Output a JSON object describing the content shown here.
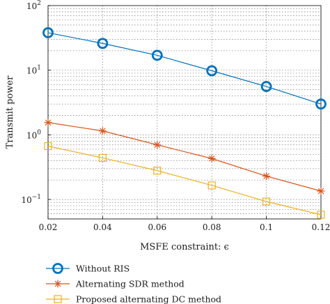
{
  "chart_data": {
    "type": "line",
    "title": "",
    "xlabel": "MSFE constraint: ϵ",
    "ylabel": "Transmit power",
    "yscale": "log",
    "xlim": [
      0.02,
      0.12
    ],
    "ylim": [
      0.05,
      100
    ],
    "grid": true,
    "legend_position": "bottom",
    "x": [
      0.02,
      0.04,
      0.06,
      0.08,
      0.1,
      0.12
    ],
    "x_tick_labels": [
      "0.02",
      "0.04",
      "0.06",
      "0.08",
      "0.1",
      "0.12"
    ],
    "y_ticks": [
      {
        "value": 0.1,
        "base": "10",
        "exp": "−1"
      },
      {
        "value": 1,
        "base": "10",
        "exp": "0"
      },
      {
        "value": 10,
        "base": "10",
        "exp": "1"
      },
      {
        "value": 100,
        "base": "10",
        "exp": "2"
      }
    ],
    "series": [
      {
        "name": "Without RIS",
        "values": [
          38,
          26,
          17,
          9.8,
          5.6,
          3.0
        ],
        "color": "#0072bd",
        "marker": "circle"
      },
      {
        "name": "Alternating SDR method",
        "values": [
          1.55,
          1.15,
          0.7,
          0.43,
          0.23,
          0.135
        ],
        "color": "#d95319",
        "marker": "star"
      },
      {
        "name": "Proposed alternating DC method",
        "values": [
          0.67,
          0.44,
          0.28,
          0.165,
          0.093,
          0.058
        ],
        "color": "#edb120",
        "marker": "square"
      }
    ]
  }
}
